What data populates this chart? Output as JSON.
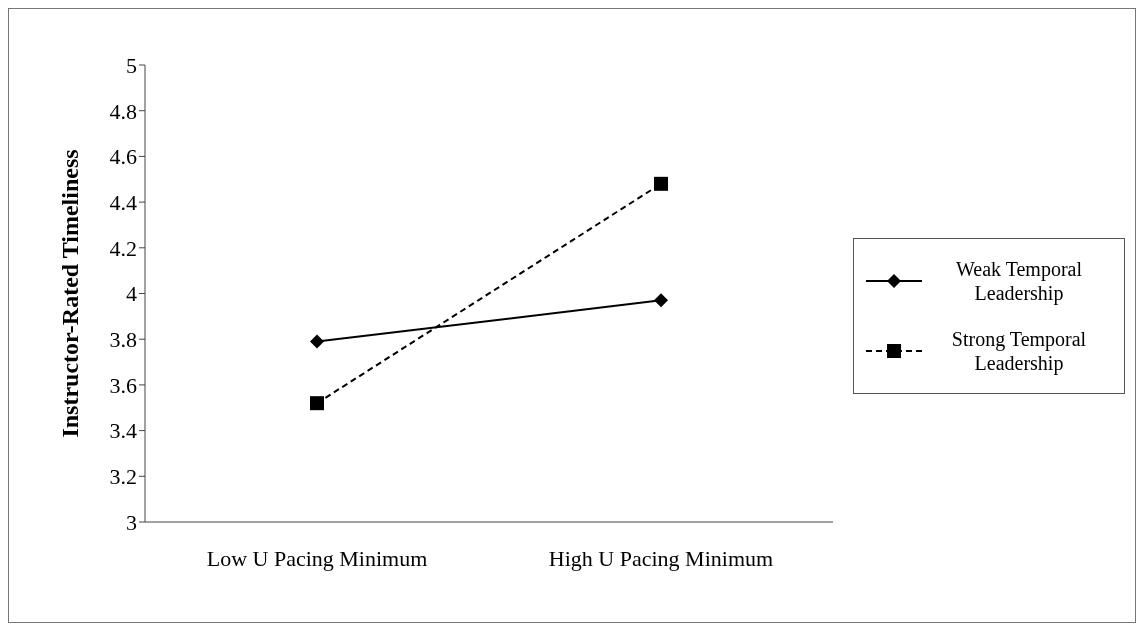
{
  "chart_data": {
    "type": "line",
    "ylabel": "Instructor-Rated Timeliness",
    "categories": [
      "Low U Pacing Minimum",
      "High U Pacing Minimum"
    ],
    "series": [
      {
        "name": "Weak Temporal Leadership",
        "color": "#000000",
        "values": [
          3.79,
          3.97
        ],
        "marker": "diamond",
        "line_style": "solid"
      },
      {
        "name": "Strong Temporal Leadership",
        "color": "#000000",
        "values": [
          3.52,
          4.48
        ],
        "marker": "square",
        "line_style": "dashed"
      }
    ],
    "ylim": [
      3,
      5
    ],
    "yticks": [
      3,
      3.2,
      3.4,
      3.6,
      3.8,
      4,
      4.2,
      4.4,
      4.6,
      4.8,
      5
    ],
    "grid": false,
    "legend": "right"
  }
}
